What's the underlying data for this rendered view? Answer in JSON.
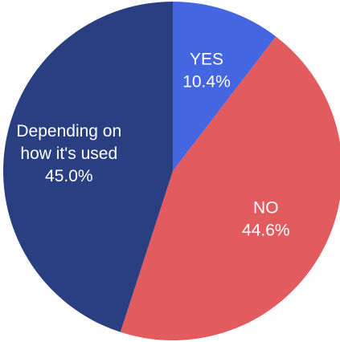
{
  "chart_data": {
    "type": "pie",
    "title": "",
    "start_angle_deg": 0,
    "direction": "clockwise",
    "slices": [
      {
        "label_lines": [
          "YES"
        ],
        "value": 10.4,
        "value_label": "10.4%",
        "color": "#4466E0"
      },
      {
        "label_lines": [
          "NO"
        ],
        "value": 44.6,
        "value_label": "44.6%",
        "color": "#E25B5E"
      },
      {
        "label_lines": [
          "Depending on",
          "how it's used"
        ],
        "value": 45.0,
        "value_label": "45.0%",
        "color": "#2A3E82"
      }
    ]
  }
}
